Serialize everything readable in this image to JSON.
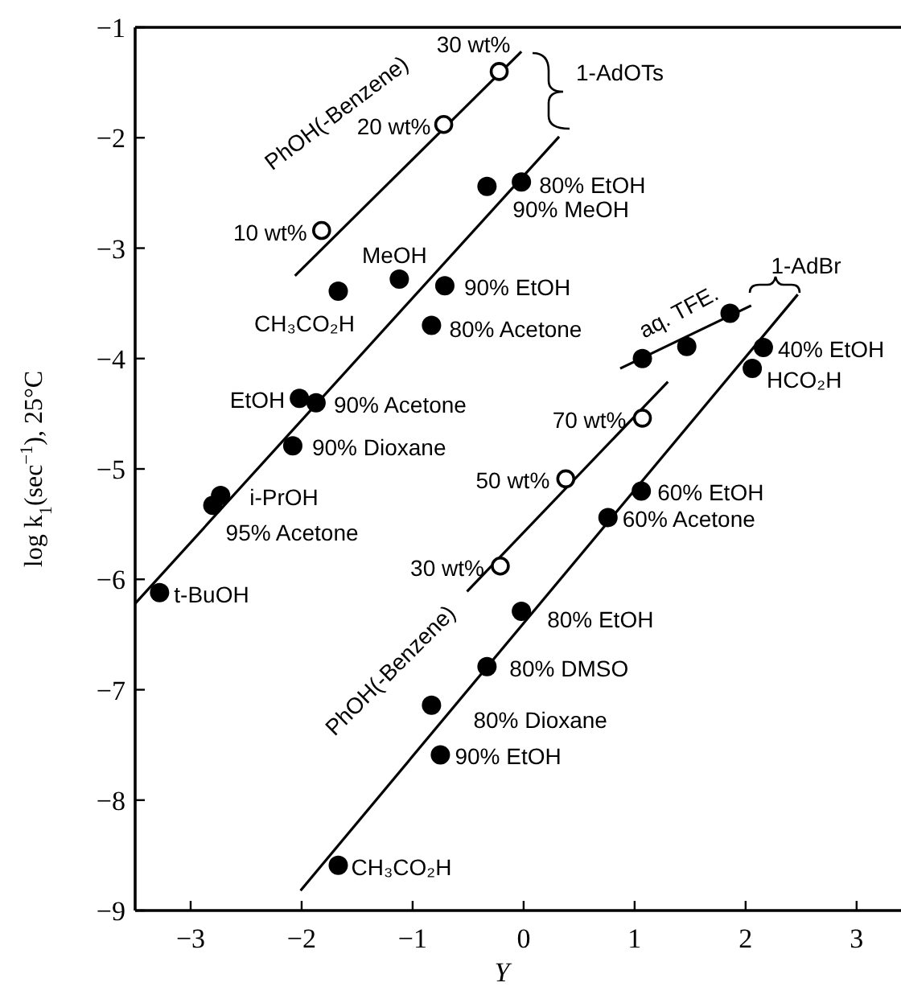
{
  "chart_data": {
    "type": "scatter",
    "xlabel": "Y",
    "ylabel": "log k$_{1}$(sec$^{−1}$), 25°C",
    "xlim": [
      -3.5,
      3.4
    ],
    "ylim": [
      -9,
      -1
    ],
    "xticks": [
      -3,
      -2,
      -1,
      0,
      1,
      2,
      3
    ],
    "yticks": [
      -9,
      -8,
      -7,
      -6,
      -5,
      -4,
      -3,
      -2,
      -1
    ],
    "grid": false,
    "marker": "circle",
    "series": [
      {
        "color": "#ffffff",
        "x": [
          -0.22,
          -0.72,
          -1.82
        ],
        "values": [
          -1.4,
          -1.88,
          -2.84
        ]
      },
      {
        "color": "#000000",
        "x": [
          -0.33,
          -0.02,
          -1.12,
          -1.67,
          -0.71,
          -0.83,
          -2.02,
          -1.87,
          -2.08,
          -2.73,
          -2.8,
          -3.28
        ],
        "values": [
          -2.44,
          -2.4,
          -3.28,
          -3.39,
          -3.34,
          -3.7,
          -4.36,
          -4.4,
          -4.79,
          -5.24,
          -5.33,
          -6.12
        ]
      },
      {
        "color": "#000000",
        "x": [
          1.07,
          1.47,
          1.86
        ],
        "values": [
          -4.0,
          -3.89,
          -3.59
        ]
      },
      {
        "color": "#000000",
        "x": [
          2.16,
          2.06,
          1.06,
          0.76,
          -0.02,
          -0.33,
          -0.83,
          -0.75,
          -1.67
        ],
        "values": [
          -3.9,
          -4.09,
          -5.2,
          -5.44,
          -6.29,
          -6.79,
          -7.14,
          -7.59,
          -8.59
        ]
      },
      {
        "color": "#ffffff",
        "x": [
          1.07,
          0.38,
          -0.21
        ],
        "values": [
          -4.54,
          -5.09,
          -5.88
        ]
      },
      {
        "type": "line",
        "color": "#000000",
        "marker": "none",
        "x": [
          -2.06,
          -0.02
        ],
        "values": [
          -3.25,
          -1.22
        ]
      },
      {
        "type": "line",
        "color": "#000000",
        "marker": "none",
        "x": [
          -3.5,
          0.32
        ],
        "values": [
          -6.22,
          -1.99
        ]
      },
      {
        "type": "line",
        "color": "#000000",
        "marker": "none",
        "x": [
          0.87,
          2.05
        ],
        "values": [
          -4.09,
          -3.52
        ]
      },
      {
        "type": "line",
        "color": "#000000",
        "marker": "none",
        "x": [
          -2.01,
          2.47
        ],
        "values": [
          -8.82,
          -3.42
        ]
      },
      {
        "type": "line",
        "color": "#000000",
        "marker": "none",
        "x": [
          -0.51,
          1.3
        ],
        "values": [
          -6.11,
          -4.21
        ]
      }
    ],
    "annotations": [
      "PhOH(-Benzene)",
      {
        "text": "30 wt%",
        "x": -0.22,
        "y": -1.4
      },
      {
        "text": "20 wt%",
        "x": -0.72,
        "y": -1.88
      },
      {
        "text": "10 wt%",
        "x": -1.82,
        "y": -2.84
      },
      "1-AdOTs",
      {
        "text": "80% EtOH",
        "x": -0.02,
        "y": -2.4
      },
      {
        "text": "90% MeOH",
        "x": -0.33,
        "y": -2.44
      },
      {
        "text": "MeOH",
        "x": -1.12,
        "y": -3.28
      },
      {
        "text": "CH₃CO₂H",
        "x": -1.67,
        "y": -3.39
      },
      {
        "text": "90% EtOH",
        "x": -0.71,
        "y": -3.34
      },
      {
        "text": "80% Acetone",
        "x": -0.83,
        "y": -3.7
      },
      {
        "text": "EtOH",
        "x": -2.02,
        "y": -4.36
      },
      {
        "text": "90% Acetone",
        "x": -1.87,
        "y": -4.4
      },
      {
        "text": "90% Dioxane",
        "x": -2.08,
        "y": -4.79
      },
      {
        "text": "i-PrOH",
        "x": -2.73,
        "y": -5.24
      },
      {
        "text": "95% Acetone",
        "x": -2.8,
        "y": -5.33
      },
      {
        "text": "t-BuOH",
        "x": -3.28,
        "y": -6.12
      },
      "aq. TFE.",
      "1-AdBr",
      {
        "text": "40% EtOH",
        "x": 2.16,
        "y": -3.9
      },
      {
        "text": "HCO₂H",
        "x": 2.06,
        "y": -4.09
      },
      {
        "text": "70 wt%",
        "x": 1.07,
        "y": -4.54
      },
      {
        "text": "50 wt%",
        "x": 0.38,
        "y": -5.09
      },
      {
        "text": "60% EtOH",
        "x": 1.06,
        "y": -5.2
      },
      {
        "text": "60% Acetone",
        "x": 0.76,
        "y": -5.44
      },
      {
        "text": "30 wt%",
        "x": -0.21,
        "y": -5.88
      },
      "PhOH(-Benzene)",
      {
        "text": "80% EtOH",
        "x": -0.02,
        "y": -6.29
      },
      {
        "text": "80% DMSO",
        "x": -0.33,
        "y": -6.79
      },
      {
        "text": "80% Dioxane",
        "x": -0.83,
        "y": -7.14
      },
      {
        "text": "90% EtOH",
        "x": -0.75,
        "y": -7.59
      },
      {
        "text": "CH₃CO₂H",
        "x": -1.67,
        "y": -8.59
      }
    ]
  }
}
